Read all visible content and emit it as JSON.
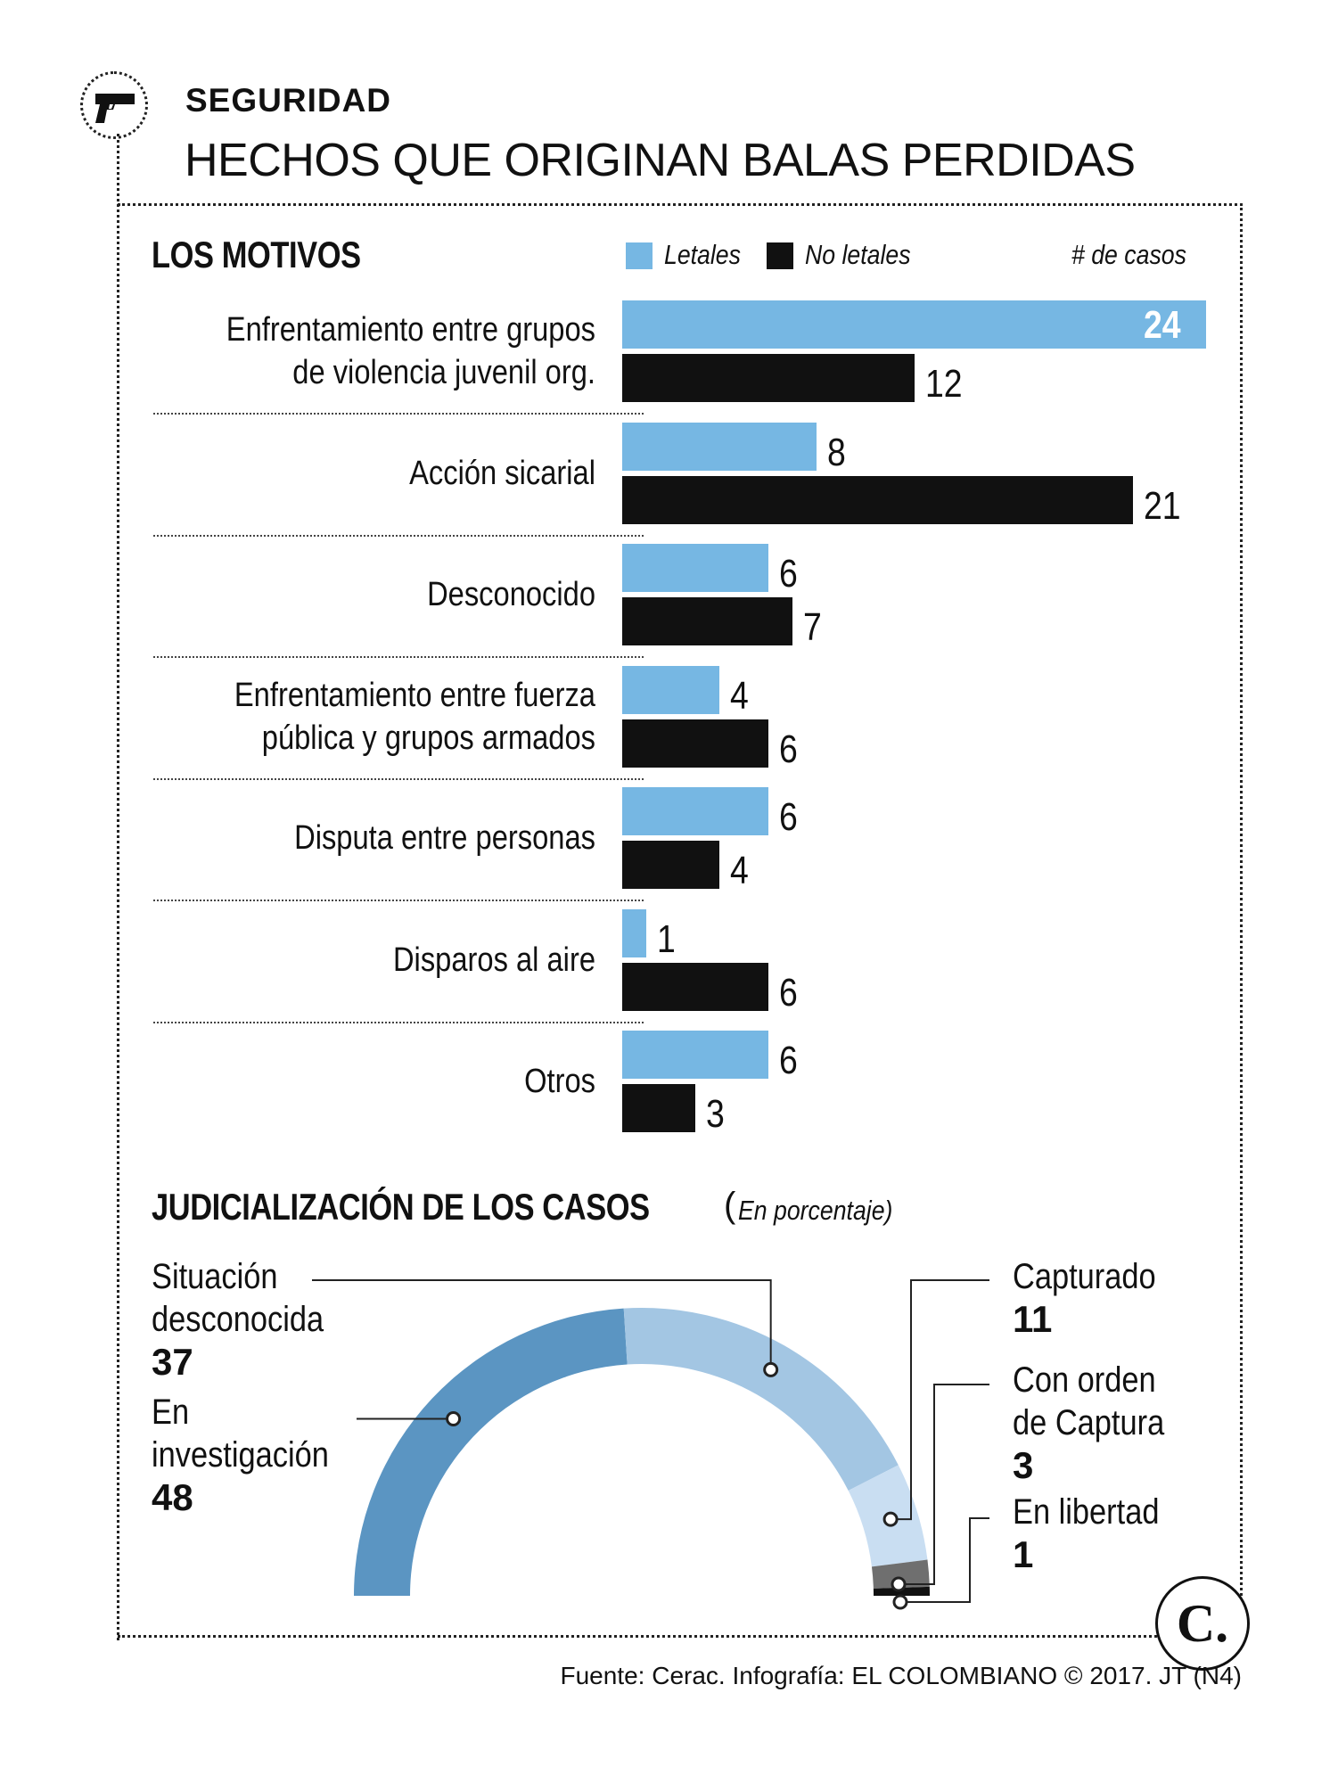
{
  "header": {
    "kicker": "SEGURIDAD",
    "title": "HECHOS QUE ORIGINAN BALAS PERDIDAS"
  },
  "motivos": {
    "heading": "LOS MOTIVOS",
    "legend_letales": "Letales",
    "legend_no_letales": "No letales",
    "unit": "# de casos"
  },
  "judicial": {
    "heading": "JUDICIALIZACIÓN DE LOS CASOS",
    "paren_open": "(",
    "note": "En porcentaje)"
  },
  "footer": {
    "source": "Fuente: Cerac. Infografía: EL COLOMBIANO © 2017. JT (N4)",
    "logo": "C."
  },
  "icons": [
    "gun-icon",
    "el-colombiano-logo"
  ],
  "colors": {
    "letales": "#76b7e3",
    "no_letales": "#111111",
    "investigacion": "#5b95c2",
    "desconocida": "#a3c6e3",
    "capturado": "#c9def2",
    "orden_captura": "#6f6f6f",
    "libertad": "#111111"
  },
  "chart_data": [
    {
      "type": "bar",
      "orientation": "horizontal",
      "title": "LOS MOTIVOS",
      "categories": [
        [
          "Enfrentamiento entre grupos",
          "de violencia juvenil org."
        ],
        [
          "Acción sicarial"
        ],
        [
          "Desconocido"
        ],
        [
          "Enfrentamiento entre fuerza",
          "pública y grupos armados"
        ],
        [
          "Disputa entre personas"
        ],
        [
          "Disparos al aire"
        ],
        [
          "Otros"
        ]
      ],
      "series": [
        {
          "name": "Letales",
          "values": [
            24,
            8,
            6,
            4,
            6,
            1,
            6
          ]
        },
        {
          "name": "No letales",
          "values": [
            12,
            21,
            7,
            6,
            4,
            6,
            3
          ]
        }
      ],
      "xlim": [
        0,
        24
      ],
      "grid": false,
      "legend": "top"
    },
    {
      "type": "pie",
      "variant": "half-donut",
      "title": "JUDICIALIZACIÓN DE LOS CASOS",
      "unit": "En porcentaje",
      "slices": [
        {
          "label": "En investigación",
          "value": 48
        },
        {
          "label": "Situación desconocida",
          "value": 37
        },
        {
          "label": "Capturado",
          "value": 11
        },
        {
          "label": "Con orden de Captura",
          "value": 3
        },
        {
          "label": "En libertad",
          "value": 1
        }
      ]
    }
  ]
}
